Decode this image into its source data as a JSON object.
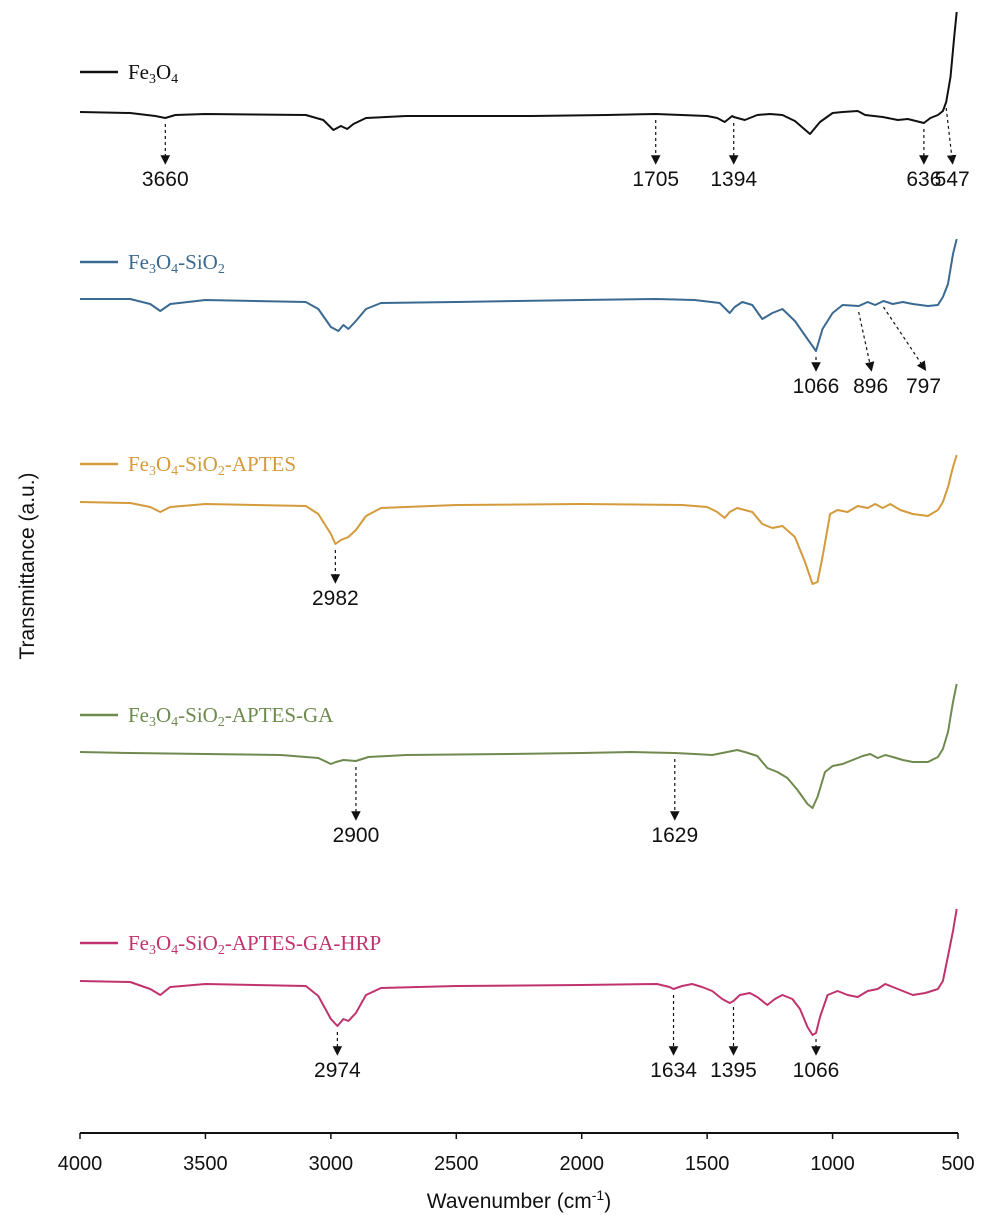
{
  "chart_data": {
    "type": "line",
    "xlabel": "Wavenumber (cm",
    "xlabel_superscript": "-1",
    "xlabel_suffix": ")",
    "ylabel": "Transmittance (a.u.)",
    "xlim": [
      4000,
      500
    ],
    "x_ticks": [
      4000,
      3500,
      3000,
      2500,
      2000,
      1500,
      1000,
      500
    ],
    "grid": false,
    "legend_placement": "above each trace, left",
    "series": [
      {
        "name": "Fe3O4",
        "legend_parts": [
          [
            "Fe",
            ""
          ],
          [
            "3",
            "sub"
          ],
          [
            "O",
            ""
          ],
          [
            "4",
            "sub"
          ]
        ],
        "color": "#111111",
        "baseline": 0,
        "points": [
          [
            4000,
            0
          ],
          [
            3800,
            1
          ],
          [
            3700,
            4
          ],
          [
            3660,
            6
          ],
          [
            3620,
            3
          ],
          [
            3500,
            2
          ],
          [
            3100,
            3
          ],
          [
            3030,
            8
          ],
          [
            2990,
            18
          ],
          [
            2960,
            14
          ],
          [
            2935,
            17
          ],
          [
            2910,
            12
          ],
          [
            2860,
            6
          ],
          [
            2700,
            4
          ],
          [
            2200,
            4
          ],
          [
            1900,
            3
          ],
          [
            1705,
            2
          ],
          [
            1500,
            4
          ],
          [
            1460,
            6
          ],
          [
            1430,
            10
          ],
          [
            1400,
            4
          ],
          [
            1394,
            5
          ],
          [
            1350,
            8
          ],
          [
            1300,
            3
          ],
          [
            1250,
            2
          ],
          [
            1200,
            3
          ],
          [
            1150,
            9
          ],
          [
            1090,
            22
          ],
          [
            1050,
            10
          ],
          [
            1000,
            1
          ],
          [
            960,
            0
          ],
          [
            900,
            -1
          ],
          [
            870,
            3
          ],
          [
            800,
            5
          ],
          [
            740,
            8
          ],
          [
            700,
            7
          ],
          [
            636,
            11
          ],
          [
            610,
            6
          ],
          [
            580,
            3
          ],
          [
            560,
            -1
          ],
          [
            547,
            -10
          ],
          [
            530,
            -35
          ],
          [
            515,
            -75
          ],
          [
            505,
            -100
          ]
        ]
      },
      {
        "name": "Fe3O4-SiO2",
        "legend_parts": [
          [
            "Fe",
            ""
          ],
          [
            "3",
            "sub"
          ],
          [
            "O",
            ""
          ],
          [
            "4",
            "sub"
          ],
          [
            "-SiO",
            ""
          ],
          [
            "2",
            "sub"
          ]
        ],
        "color": "#3a6a91",
        "baseline": 0,
        "points": [
          [
            4000,
            0
          ],
          [
            3800,
            0
          ],
          [
            3720,
            5
          ],
          [
            3680,
            12
          ],
          [
            3640,
            5
          ],
          [
            3500,
            1
          ],
          [
            3100,
            3
          ],
          [
            3050,
            10
          ],
          [
            3000,
            28
          ],
          [
            2970,
            32
          ],
          [
            2950,
            26
          ],
          [
            2930,
            30
          ],
          [
            2900,
            22
          ],
          [
            2860,
            10
          ],
          [
            2800,
            4
          ],
          [
            2500,
            3
          ],
          [
            2000,
            1
          ],
          [
            1705,
            0
          ],
          [
            1550,
            1
          ],
          [
            1450,
            4
          ],
          [
            1410,
            14
          ],
          [
            1390,
            8
          ],
          [
            1360,
            3
          ],
          [
            1320,
            6
          ],
          [
            1280,
            20
          ],
          [
            1240,
            14
          ],
          [
            1200,
            10
          ],
          [
            1150,
            22
          ],
          [
            1100,
            40
          ],
          [
            1066,
            52
          ],
          [
            1040,
            30
          ],
          [
            1000,
            14
          ],
          [
            960,
            6
          ],
          [
            896,
            7
          ],
          [
            860,
            3
          ],
          [
            830,
            6
          ],
          [
            797,
            2
          ],
          [
            760,
            5
          ],
          [
            720,
            3
          ],
          [
            680,
            5
          ],
          [
            620,
            7
          ],
          [
            580,
            6
          ],
          [
            560,
            -2
          ],
          [
            540,
            -15
          ],
          [
            520,
            -45
          ],
          [
            505,
            -60
          ]
        ]
      },
      {
        "name": "Fe3O4-SiO2-APTES",
        "legend_parts": [
          [
            "Fe",
            ""
          ],
          [
            "3",
            "sub"
          ],
          [
            "O",
            ""
          ],
          [
            "4",
            "sub"
          ],
          [
            "-SiO",
            ""
          ],
          [
            "2",
            "sub"
          ],
          [
            "-APTES",
            ""
          ]
        ],
        "color": "#d49a3c",
        "baseline": 0,
        "points": [
          [
            4000,
            0
          ],
          [
            3800,
            1
          ],
          [
            3720,
            5
          ],
          [
            3680,
            10
          ],
          [
            3640,
            5
          ],
          [
            3500,
            2
          ],
          [
            3100,
            4
          ],
          [
            3050,
            12
          ],
          [
            3000,
            32
          ],
          [
            2982,
            42
          ],
          [
            2960,
            38
          ],
          [
            2930,
            35
          ],
          [
            2900,
            28
          ],
          [
            2860,
            14
          ],
          [
            2800,
            6
          ],
          [
            2500,
            3
          ],
          [
            2000,
            2
          ],
          [
            1600,
            3
          ],
          [
            1500,
            5
          ],
          [
            1460,
            10
          ],
          [
            1430,
            16
          ],
          [
            1410,
            10
          ],
          [
            1380,
            6
          ],
          [
            1320,
            10
          ],
          [
            1280,
            22
          ],
          [
            1240,
            26
          ],
          [
            1200,
            24
          ],
          [
            1150,
            35
          ],
          [
            1110,
            60
          ],
          [
            1080,
            82
          ],
          [
            1060,
            80
          ],
          [
            1040,
            55
          ],
          [
            1010,
            12
          ],
          [
            980,
            8
          ],
          [
            940,
            10
          ],
          [
            900,
            4
          ],
          [
            860,
            6
          ],
          [
            830,
            2
          ],
          [
            800,
            6
          ],
          [
            770,
            2
          ],
          [
            730,
            8
          ],
          [
            680,
            12
          ],
          [
            620,
            14
          ],
          [
            580,
            8
          ],
          [
            560,
            0
          ],
          [
            540,
            -15
          ],
          [
            520,
            -35
          ],
          [
            505,
            -47
          ]
        ]
      },
      {
        "name": "Fe3O4-SiO2-APTES-GA",
        "legend_parts": [
          [
            "Fe",
            ""
          ],
          [
            "3",
            "sub"
          ],
          [
            "O",
            ""
          ],
          [
            "4",
            "sub"
          ],
          [
            "-SiO",
            ""
          ],
          [
            "2",
            "sub"
          ],
          [
            "-APTES-GA",
            ""
          ]
        ],
        "color": "#6f8a4e",
        "baseline": 0,
        "points": [
          [
            4000,
            0
          ],
          [
            3800,
            1
          ],
          [
            3500,
            2
          ],
          [
            3200,
            3
          ],
          [
            3050,
            6
          ],
          [
            3000,
            12
          ],
          [
            2980,
            10
          ],
          [
            2950,
            8
          ],
          [
            2900,
            9
          ],
          [
            2850,
            5
          ],
          [
            2700,
            3
          ],
          [
            2300,
            2
          ],
          [
            2000,
            1
          ],
          [
            1800,
            0
          ],
          [
            1629,
            1
          ],
          [
            1550,
            2
          ],
          [
            1480,
            3
          ],
          [
            1420,
            0
          ],
          [
            1380,
            -2
          ],
          [
            1350,
            0
          ],
          [
            1300,
            4
          ],
          [
            1260,
            16
          ],
          [
            1220,
            20
          ],
          [
            1180,
            26
          ],
          [
            1140,
            38
          ],
          [
            1100,
            52
          ],
          [
            1080,
            56
          ],
          [
            1060,
            45
          ],
          [
            1030,
            20
          ],
          [
            1000,
            14
          ],
          [
            960,
            12
          ],
          [
            920,
            8
          ],
          [
            880,
            4
          ],
          [
            850,
            2
          ],
          [
            820,
            6
          ],
          [
            790,
            3
          ],
          [
            760,
            5
          ],
          [
            720,
            8
          ],
          [
            680,
            10
          ],
          [
            620,
            10
          ],
          [
            580,
            5
          ],
          [
            560,
            -3
          ],
          [
            540,
            -20
          ],
          [
            520,
            -50
          ],
          [
            505,
            -68
          ]
        ]
      },
      {
        "name": "Fe3O4-SiO2-APTES-GA-HRP",
        "legend_parts": [
          [
            "Fe",
            ""
          ],
          [
            "3",
            "sub"
          ],
          [
            "O",
            ""
          ],
          [
            "4",
            "sub"
          ],
          [
            "-SiO",
            ""
          ],
          [
            "2",
            "sub"
          ],
          [
            "-APTES-GA-HRP",
            ""
          ]
        ],
        "color": "#c0336e",
        "baseline": 0,
        "points": [
          [
            4000,
            0
          ],
          [
            3800,
            1
          ],
          [
            3720,
            8
          ],
          [
            3680,
            14
          ],
          [
            3640,
            6
          ],
          [
            3500,
            3
          ],
          [
            3100,
            5
          ],
          [
            3050,
            15
          ],
          [
            3000,
            38
          ],
          [
            2974,
            45
          ],
          [
            2950,
            38
          ],
          [
            2930,
            40
          ],
          [
            2900,
            32
          ],
          [
            2860,
            14
          ],
          [
            2800,
            7
          ],
          [
            2500,
            5
          ],
          [
            2000,
            4
          ],
          [
            1700,
            3
          ],
          [
            1650,
            6
          ],
          [
            1634,
            8
          ],
          [
            1600,
            5
          ],
          [
            1560,
            3
          ],
          [
            1520,
            6
          ],
          [
            1480,
            10
          ],
          [
            1440,
            18
          ],
          [
            1410,
            22
          ],
          [
            1395,
            20
          ],
          [
            1370,
            14
          ],
          [
            1330,
            12
          ],
          [
            1300,
            16
          ],
          [
            1260,
            24
          ],
          [
            1230,
            18
          ],
          [
            1200,
            14
          ],
          [
            1160,
            18
          ],
          [
            1130,
            28
          ],
          [
            1100,
            46
          ],
          [
            1080,
            54
          ],
          [
            1066,
            52
          ],
          [
            1050,
            36
          ],
          [
            1020,
            14
          ],
          [
            980,
            10
          ],
          [
            940,
            14
          ],
          [
            900,
            16
          ],
          [
            860,
            10
          ],
          [
            820,
            8
          ],
          [
            790,
            3
          ],
          [
            760,
            6
          ],
          [
            720,
            10
          ],
          [
            680,
            14
          ],
          [
            630,
            12
          ],
          [
            580,
            8
          ],
          [
            560,
            0
          ],
          [
            540,
            -25
          ],
          [
            520,
            -50
          ],
          [
            505,
            -72
          ]
        ]
      }
    ],
    "peak_labels": [
      {
        "series": 0,
        "wavenumber": 3660,
        "text": "3660"
      },
      {
        "series": 0,
        "wavenumber": 1705,
        "text": "1705"
      },
      {
        "series": 0,
        "wavenumber": 1394,
        "text": "1394"
      },
      {
        "series": 0,
        "wavenumber": 636,
        "text": "636"
      },
      {
        "series": 0,
        "wavenumber": 547,
        "text": "547"
      },
      {
        "series": 1,
        "wavenumber": 1066,
        "text": "1066"
      },
      {
        "series": 1,
        "wavenumber": 896,
        "text": "896"
      },
      {
        "series": 1,
        "wavenumber": 797,
        "text": "797"
      },
      {
        "series": 2,
        "wavenumber": 2982,
        "text": "2982"
      },
      {
        "series": 3,
        "wavenumber": 2900,
        "text": "2900"
      },
      {
        "series": 3,
        "wavenumber": 1629,
        "text": "1629"
      },
      {
        "series": 4,
        "wavenumber": 2974,
        "text": "2974"
      },
      {
        "series": 4,
        "wavenumber": 1634,
        "text": "1634"
      },
      {
        "series": 4,
        "wavenumber": 1395,
        "text": "1395"
      },
      {
        "series": 4,
        "wavenumber": 1066,
        "text": "1066"
      }
    ]
  }
}
